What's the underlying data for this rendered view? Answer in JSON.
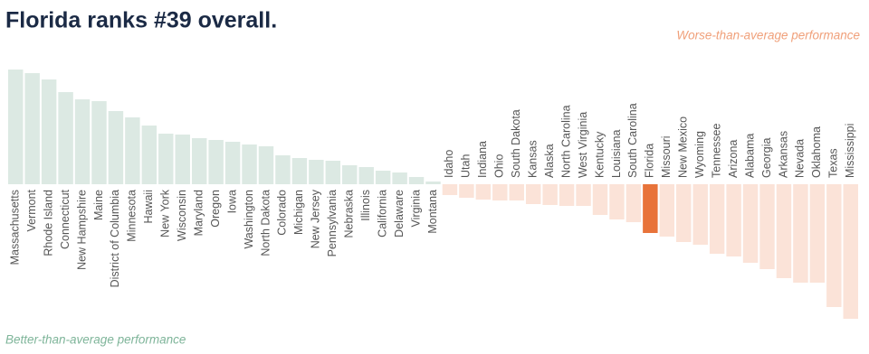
{
  "chart_data": {
    "type": "bar",
    "title": "Florida ranks #39 overall.",
    "annotation_worse": "Worse-than-average performance",
    "annotation_better": "Better-than-average performance",
    "categories": [
      "Massachusetts",
      "Vermont",
      "Rhode Island",
      "Connecticut",
      "New Hampshire",
      "Maine",
      "District of Columbia",
      "Minnesota",
      "Hawaii",
      "New York",
      "Wisconsin",
      "Maryland",
      "Oregon",
      "Iowa",
      "Washington",
      "North Dakota",
      "Colorado",
      "Michigan",
      "New Jersey",
      "Pennsylvania",
      "Nebraska",
      "Illinois",
      "California",
      "Delaware",
      "Virginia",
      "Montana",
      "Idaho",
      "Utah",
      "Indiana",
      "Ohio",
      "South Dakota",
      "Kansas",
      "Alaska",
      "North Carolina",
      "West Virginia",
      "Kentucky",
      "Louisiana",
      "South Carolina",
      "Florida",
      "Missouri",
      "New Mexico",
      "Wyoming",
      "Tennessee",
      "Arizona",
      "Alabama",
      "Georgia",
      "Arkansas",
      "Nevada",
      "Oklahoma",
      "Texas",
      "Mississippi"
    ],
    "values": [
      127,
      123,
      116,
      102,
      94,
      92,
      81,
      74,
      65,
      56,
      55,
      51,
      49,
      47,
      44,
      42,
      32,
      29,
      27,
      26,
      21,
      19,
      15,
      13,
      8,
      3,
      -12,
      -15,
      -17,
      -18,
      -18,
      -22,
      -23,
      -24,
      -24,
      -34,
      -39,
      -42,
      -54,
      -58,
      -64,
      -67,
      -77,
      -80,
      -87,
      -94,
      -104,
      -109,
      -109,
      -136,
      -149
    ],
    "color_better": "#dce9e3",
    "color_worse": "#fbe3d8",
    "highlight_color": "#e8733a",
    "highlight_index": 38
  }
}
